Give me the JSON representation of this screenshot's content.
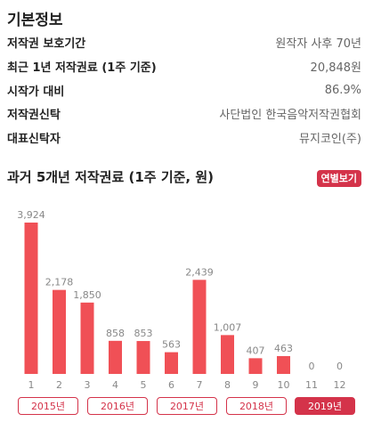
{
  "info": {
    "title": "기본정보",
    "rows": [
      {
        "label": "저작권 보호기간",
        "value": "원작자 사후 70년"
      },
      {
        "label": "최근 1년 저작권료 (1주 기준)",
        "value": "20,848원"
      },
      {
        "label": "시작가 대비",
        "value": "86.9%"
      },
      {
        "label": "저작권신탁",
        "value": "사단법인 한국음악저작권협회"
      },
      {
        "label": "대표신탁자",
        "value": "뮤지코인(주)"
      }
    ]
  },
  "chart_section": {
    "title": "과거 5개년 저작권료 (1주 기준, 원)",
    "yearly_button": "연별보기"
  },
  "colors": {
    "accent": "#d4334a",
    "bar": "#f05056",
    "axis_text": "#888888"
  },
  "chart_data": {
    "type": "bar",
    "categories": [
      "1",
      "2",
      "3",
      "4",
      "5",
      "6",
      "7",
      "8",
      "9",
      "10",
      "11",
      "12"
    ],
    "values": [
      3924,
      2178,
      1850,
      858,
      853,
      563,
      2439,
      1007,
      407,
      463,
      0,
      0
    ],
    "value_labels": [
      "3,924",
      "2,178",
      "1,850",
      "858",
      "853",
      "563",
      "2,439",
      "1,007",
      "407",
      "463",
      "0",
      "0"
    ],
    "ylim": [
      0,
      3924
    ],
    "grid": false,
    "legend": "none"
  },
  "year_tabs": [
    {
      "label": "2015년",
      "active": false
    },
    {
      "label": "2016년",
      "active": false
    },
    {
      "label": "2017년",
      "active": false
    },
    {
      "label": "2018년",
      "active": false
    },
    {
      "label": "2019년",
      "active": true
    }
  ]
}
